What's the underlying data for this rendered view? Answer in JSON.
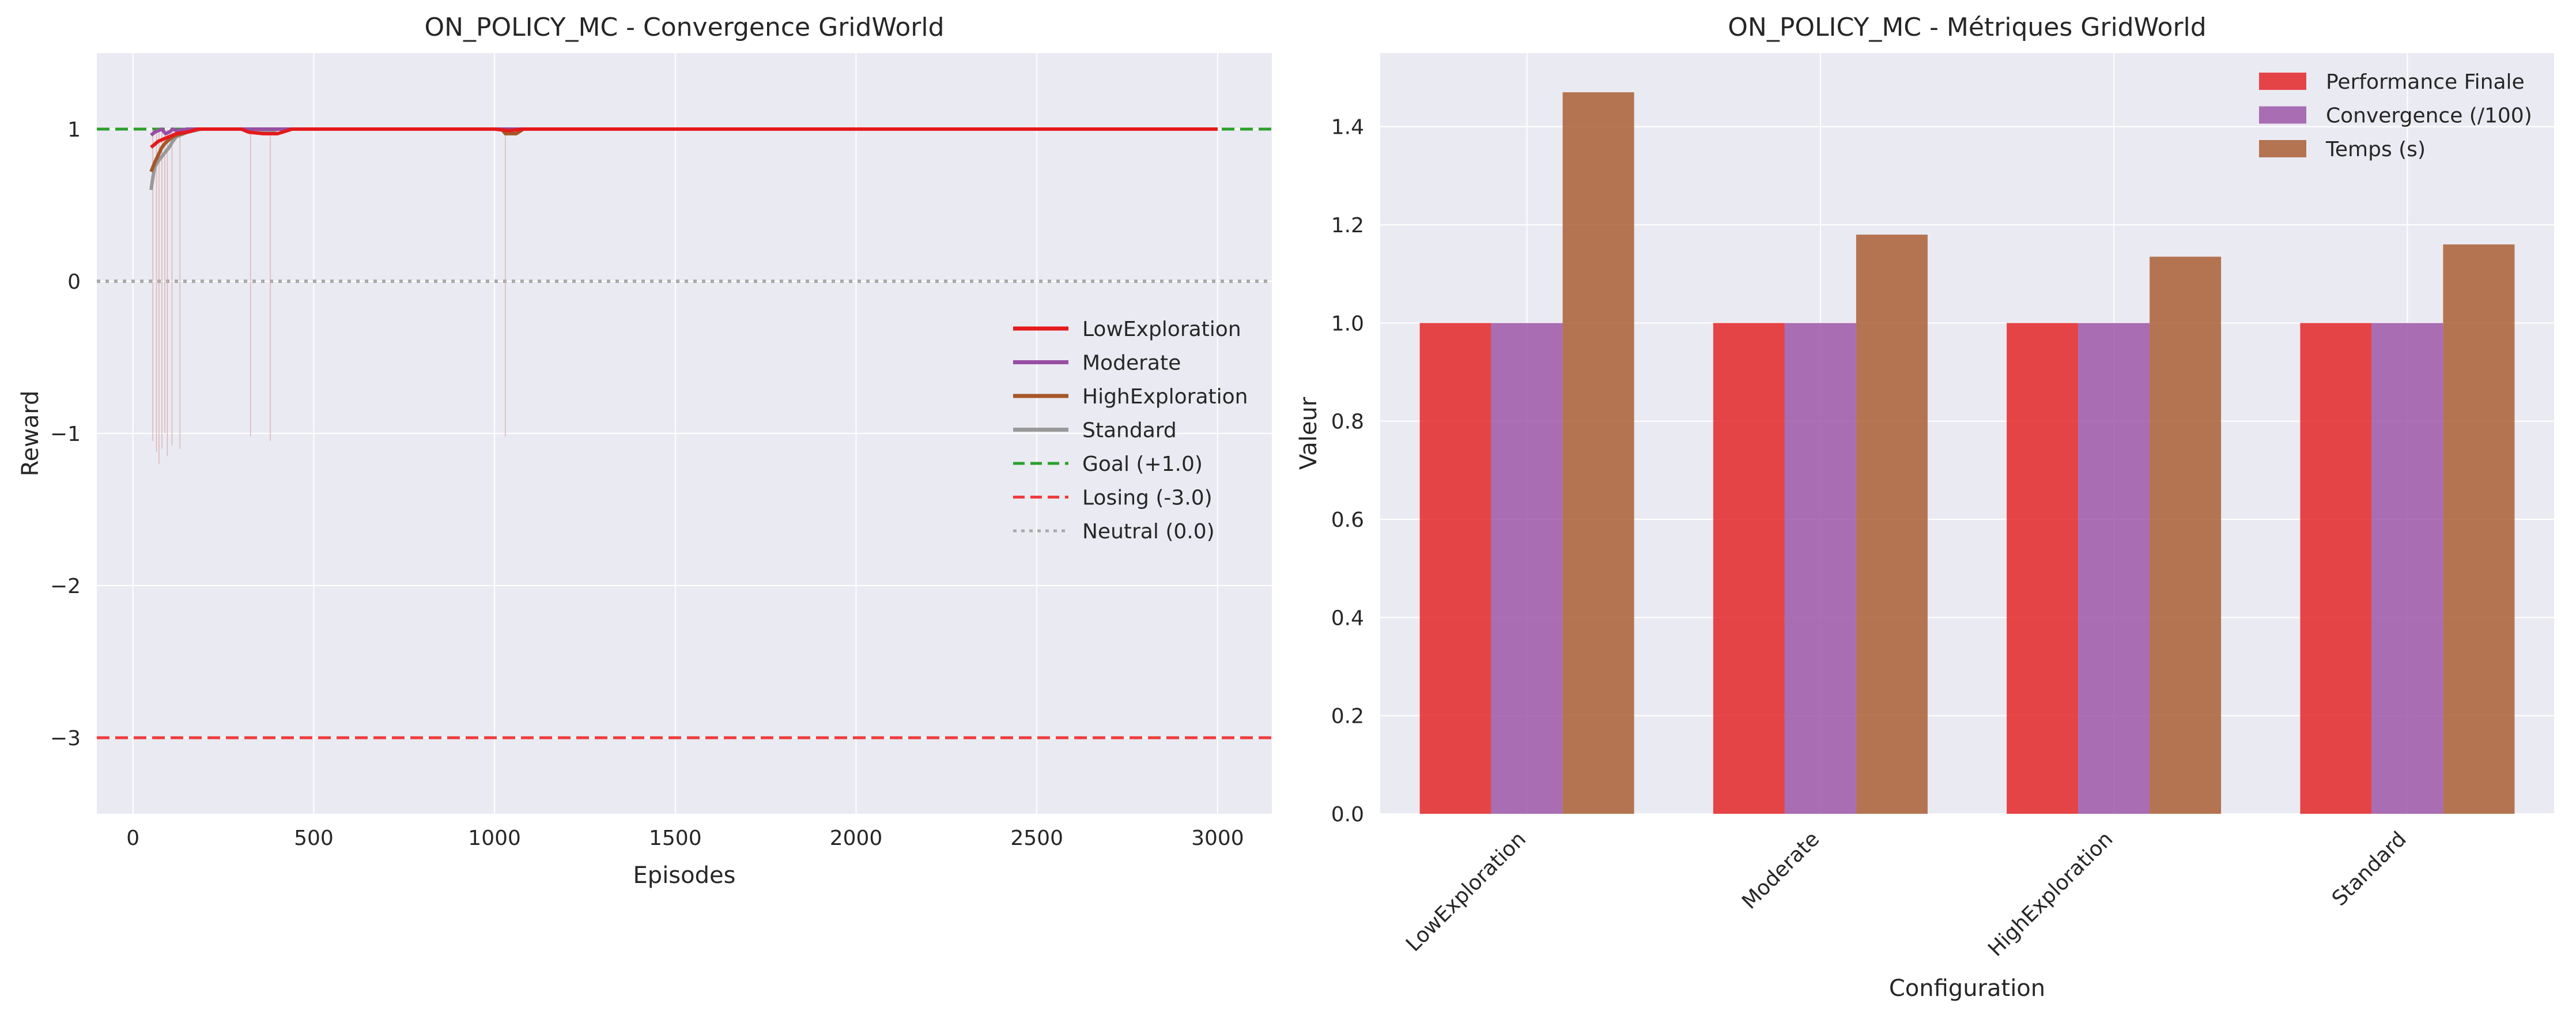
{
  "chart_data": [
    {
      "type": "line",
      "title": "ON_POLICY_MC - Convergence GridWorld",
      "xlabel": "Episodes",
      "ylabel": "Reward",
      "xlim": [
        -100,
        3150
      ],
      "ylim": [
        -3.5,
        1.5
      ],
      "xticks": [
        0,
        500,
        1000,
        1500,
        2000,
        2500,
        3000
      ],
      "yticks": [
        1,
        0,
        -1,
        -2,
        -3
      ],
      "grid": true,
      "legend_position": "center-right",
      "series": [
        {
          "name": "LowExploration",
          "color": "#e41a1c",
          "x": [
            50,
            60,
            70,
            80,
            90,
            100,
            110,
            120,
            150,
            180,
            300,
            320,
            360,
            400,
            440,
            1000,
            1040,
            1080,
            3000
          ],
          "y": [
            0.88,
            0.9,
            0.92,
            0.93,
            0.94,
            0.95,
            0.96,
            0.97,
            0.98,
            1.0,
            1.0,
            0.98,
            0.97,
            0.97,
            1.0,
            1.0,
            0.99,
            1.0,
            1.0
          ]
        },
        {
          "name": "Moderate",
          "color": "#984ea3",
          "x": [
            50,
            60,
            70,
            80,
            90,
            100,
            110,
            120,
            150,
            200,
            3000
          ],
          "y": [
            0.96,
            0.98,
            0.99,
            1.0,
            0.97,
            0.98,
            1.0,
            0.99,
            1.0,
            1.0,
            1.0
          ]
        },
        {
          "name": "HighExploration",
          "color": "#a65628",
          "x": [
            50,
            60,
            70,
            80,
            90,
            100,
            110,
            120,
            150,
            180,
            1020,
            1030,
            1060,
            1080,
            3000
          ],
          "y": [
            0.72,
            0.78,
            0.83,
            0.88,
            0.91,
            0.93,
            0.95,
            0.96,
            0.98,
            1.0,
            1.0,
            0.97,
            0.97,
            1.0,
            1.0
          ]
        },
        {
          "name": "Standard",
          "color": "#999999",
          "x": [
            50,
            55,
            60,
            70,
            80,
            90,
            100,
            110,
            120,
            150,
            190,
            320,
            340,
            380,
            400,
            3000
          ],
          "y": [
            0.6,
            0.68,
            0.75,
            0.79,
            0.82,
            0.85,
            0.88,
            0.92,
            0.95,
            0.98,
            1.0,
            1.0,
            0.98,
            0.98,
            1.0,
            1.0
          ]
        }
      ],
      "reference_lines": [
        {
          "name": "Goal (+1.0)",
          "y": 1.0,
          "color": "#2ca02c",
          "style": "dashed"
        },
        {
          "name": "Losing (-3.0)",
          "y": -3.0,
          "color": "#f03b3b",
          "style": "dashed"
        },
        {
          "name": "Neutral (0.0)",
          "y": 0.0,
          "color": "#aaaaaa",
          "style": "dotted"
        }
      ],
      "raw_episode_dips": [
        {
          "x": 55,
          "y": -1.05
        },
        {
          "x": 65,
          "y": -1.12
        },
        {
          "x": 72,
          "y": -1.2
        },
        {
          "x": 80,
          "y": -1.1
        },
        {
          "x": 88,
          "y": -1.0
        },
        {
          "x": 95,
          "y": -1.15
        },
        {
          "x": 108,
          "y": -1.08
        },
        {
          "x": 130,
          "y": -1.1
        },
        {
          "x": 325,
          "y": -1.02
        },
        {
          "x": 380,
          "y": -1.05
        },
        {
          "x": 1030,
          "y": -1.02
        }
      ]
    },
    {
      "type": "bar",
      "title": "ON_POLICY_MC - Métriques GridWorld",
      "xlabel": "Configuration",
      "ylabel": "Valeur",
      "ylim": [
        0,
        1.55
      ],
      "yticks": [
        0.0,
        0.2,
        0.4,
        0.6,
        0.8,
        1.0,
        1.2,
        1.4
      ],
      "ytick_labels": [
        "0.0",
        "0.2",
        "0.4",
        "0.6",
        "0.8",
        "1.0",
        "1.2",
        "1.4"
      ],
      "grid": true,
      "legend_position": "top-right",
      "categories": [
        "LowExploration",
        "Moderate",
        "HighExploration",
        "Standard"
      ],
      "series": [
        {
          "name": "Performance Finale",
          "color": "#e41a1c",
          "values": [
            1.0,
            1.0,
            1.0,
            1.0
          ]
        },
        {
          "name": "Convergence (/100)",
          "color": "#984ea3",
          "values": [
            1.0,
            1.0,
            1.0,
            1.0
          ]
        },
        {
          "name": "Temps (s)",
          "color": "#a65628",
          "values": [
            1.47,
            1.18,
            1.135,
            1.16
          ]
        }
      ]
    }
  ]
}
